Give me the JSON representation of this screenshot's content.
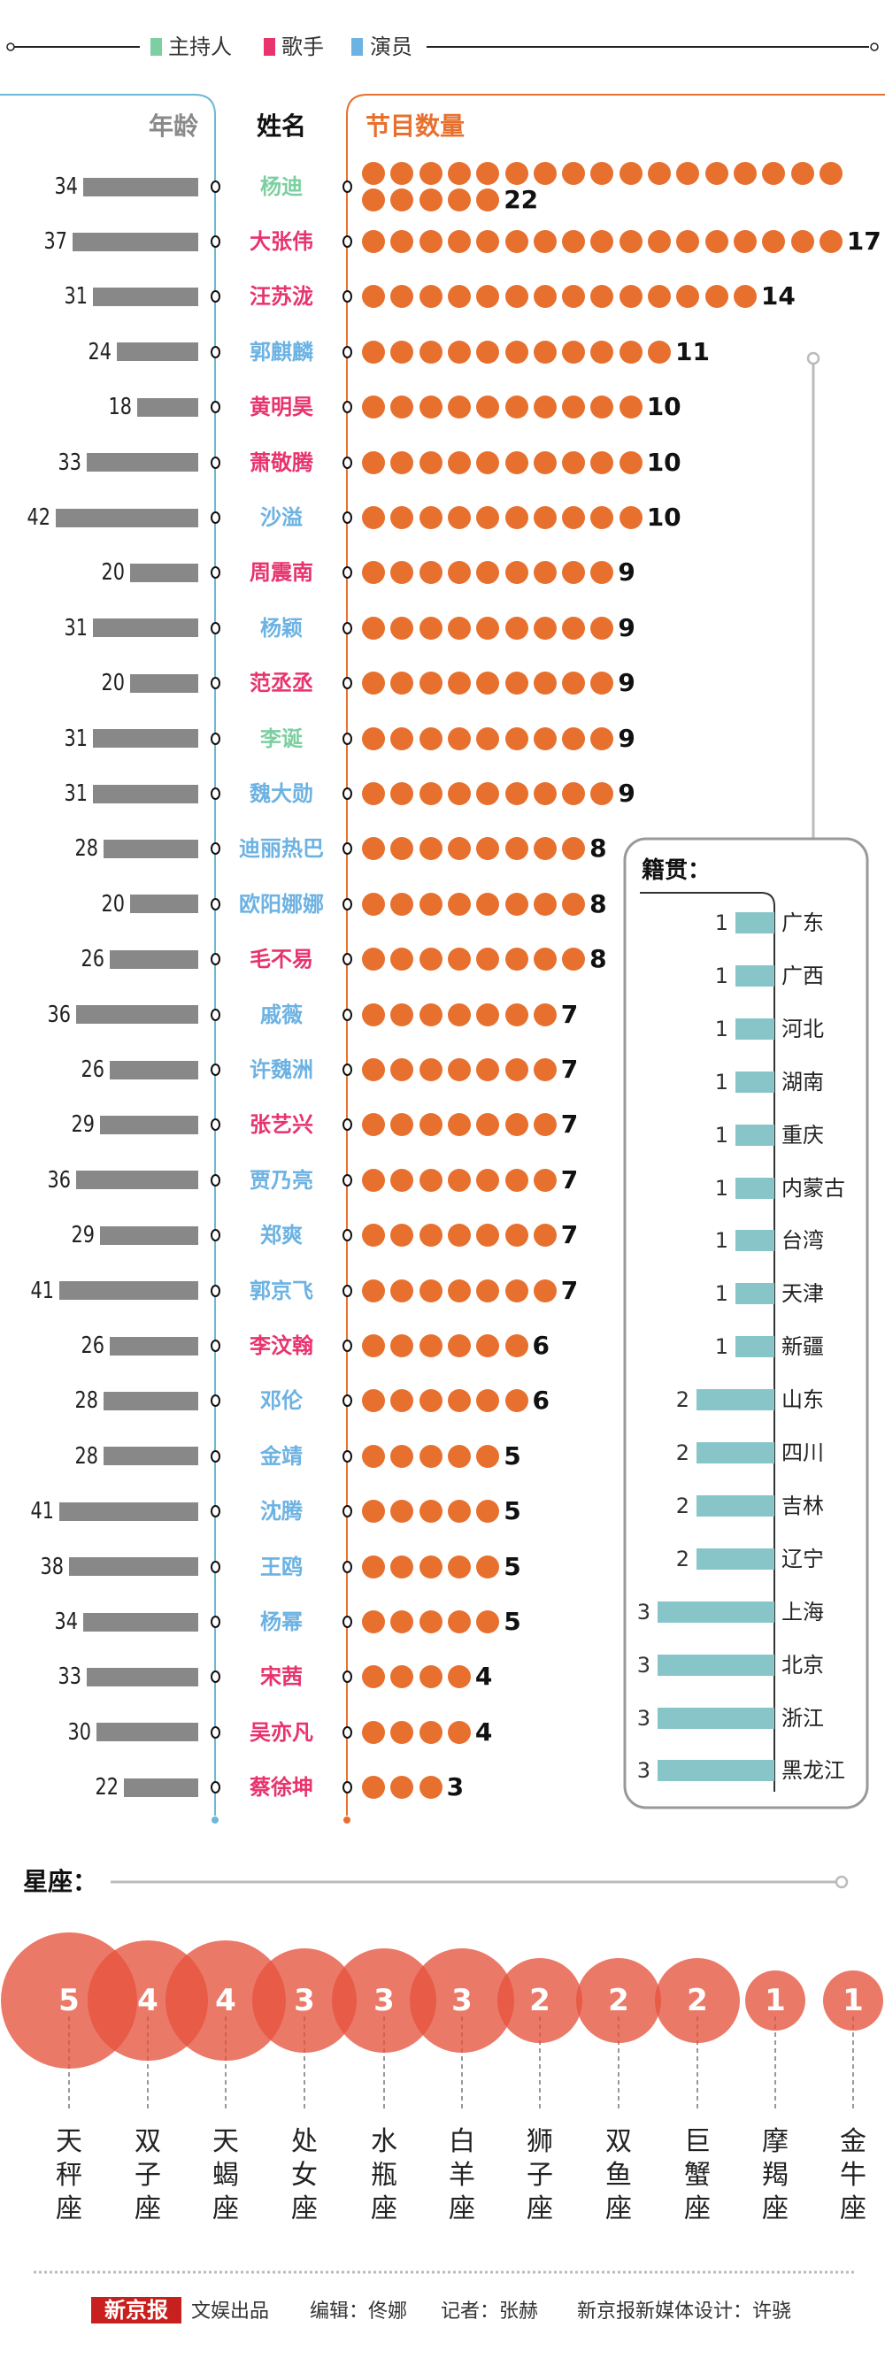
{
  "legend": [
    {
      "label": "主持人",
      "color": "#7ccfa0"
    },
    {
      "label": "歌手",
      "color": "#e8336d"
    },
    {
      "label": "演员",
      "color": "#6cb2e2"
    }
  ],
  "headers": {
    "age": "年龄",
    "name": "姓名",
    "count": "节目数量"
  },
  "colors": {
    "host": "#7ccfa0",
    "singer": "#e8336d",
    "actor": "#6cb2e2",
    "dots": "#e8702e",
    "age_bar": "#888888",
    "province_bar": "#88c5c9",
    "zodiac": "#e5533d"
  },
  "chart_data": [
    {
      "type": "bar",
      "title": "",
      "columns": [
        "年龄",
        "姓名",
        "节目数量"
      ],
      "rows": [
        {
          "name": "杨迪",
          "role": "host",
          "age": 34,
          "count": 22
        },
        {
          "name": "大张伟",
          "role": "singer",
          "age": 37,
          "count": 17
        },
        {
          "name": "汪苏泷",
          "role": "singer",
          "age": 31,
          "count": 14
        },
        {
          "name": "郭麒麟",
          "role": "actor",
          "age": 24,
          "count": 11
        },
        {
          "name": "黄明昊",
          "role": "singer",
          "age": 18,
          "count": 10
        },
        {
          "name": "萧敬腾",
          "role": "singer",
          "age": 33,
          "count": 10
        },
        {
          "name": "沙溢",
          "role": "actor",
          "age": 42,
          "count": 10
        },
        {
          "name": "周震南",
          "role": "singer",
          "age": 20,
          "count": 9
        },
        {
          "name": "杨颖",
          "role": "actor",
          "age": 31,
          "count": 9
        },
        {
          "name": "范丞丞",
          "role": "singer",
          "age": 20,
          "count": 9
        },
        {
          "name": "李诞",
          "role": "host",
          "age": 31,
          "count": 9
        },
        {
          "name": "魏大勋",
          "role": "actor",
          "age": 31,
          "count": 9
        },
        {
          "name": "迪丽热巴",
          "role": "actor",
          "age": 28,
          "count": 8
        },
        {
          "name": "欧阳娜娜",
          "role": "actor",
          "age": 20,
          "count": 8
        },
        {
          "name": "毛不易",
          "role": "singer",
          "age": 26,
          "count": 8
        },
        {
          "name": "戚薇",
          "role": "actor",
          "age": 36,
          "count": 7
        },
        {
          "name": "许魏洲",
          "role": "actor",
          "age": 26,
          "count": 7
        },
        {
          "name": "张艺兴",
          "role": "singer",
          "age": 29,
          "count": 7
        },
        {
          "name": "贾乃亮",
          "role": "actor",
          "age": 36,
          "count": 7
        },
        {
          "name": "郑爽",
          "role": "actor",
          "age": 29,
          "count": 7
        },
        {
          "name": "郭京飞",
          "role": "actor",
          "age": 41,
          "count": 7
        },
        {
          "name": "李汶翰",
          "role": "singer",
          "age": 26,
          "count": 6
        },
        {
          "name": "邓伦",
          "role": "actor",
          "age": 28,
          "count": 6
        },
        {
          "name": "金靖",
          "role": "actor",
          "age": 28,
          "count": 5
        },
        {
          "name": "沈腾",
          "role": "actor",
          "age": 41,
          "count": 5
        },
        {
          "name": "王鸥",
          "role": "actor",
          "age": 38,
          "count": 5
        },
        {
          "name": "杨幂",
          "role": "actor",
          "age": 34,
          "count": 5
        },
        {
          "name": "宋茜",
          "role": "singer",
          "age": 33,
          "count": 4
        },
        {
          "name": "吴亦凡",
          "role": "singer",
          "age": 30,
          "count": 4
        },
        {
          "name": "蔡徐坤",
          "role": "singer",
          "age": 22,
          "count": 3
        }
      ]
    },
    {
      "type": "bar",
      "title": "籍贯：",
      "categories": [
        "广东",
        "广西",
        "河北",
        "湖南",
        "重庆",
        "内蒙古",
        "台湾",
        "天津",
        "新疆",
        "山东",
        "四川",
        "吉林",
        "辽宁",
        "上海",
        "北京",
        "浙江",
        "黑龙江"
      ],
      "values": [
        1,
        1,
        1,
        1,
        1,
        1,
        1,
        1,
        1,
        2,
        2,
        2,
        2,
        3,
        3,
        3,
        3
      ]
    },
    {
      "type": "bubble",
      "title": "星座：",
      "categories": [
        "天秤座",
        "双子座",
        "天蝎座",
        "处女座",
        "水瓶座",
        "白羊座",
        "狮子座",
        "双鱼座",
        "巨蟹座",
        "摩羯座",
        "金牛座"
      ],
      "values": [
        5,
        4,
        4,
        3,
        3,
        3,
        2,
        2,
        2,
        1,
        1
      ]
    }
  ],
  "footer": {
    "logo": "新京报",
    "produced": "文娱出品",
    "editor": "编辑：佟娜",
    "reporter": "记者：张赫",
    "designer": "新京报新媒体设计：许骁"
  }
}
